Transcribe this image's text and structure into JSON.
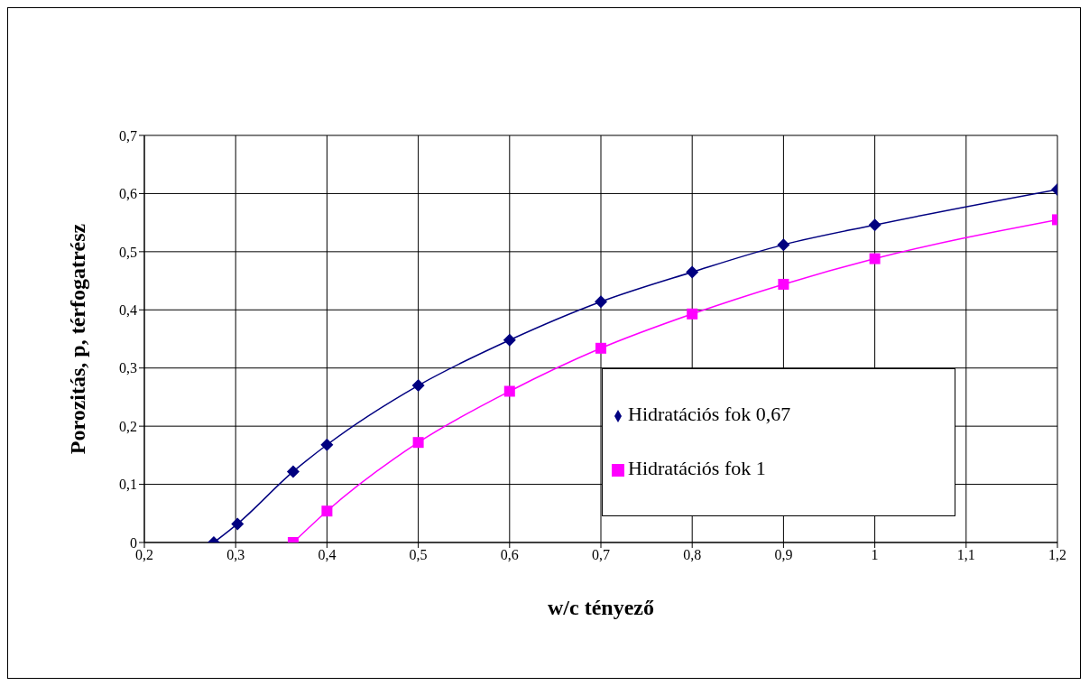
{
  "chart_data": {
    "type": "line",
    "xlabel": "w/c tényező",
    "ylabel": "Porozitás, p, térfogatrész",
    "series": [
      {
        "name": "Hidratációs fok 0,67",
        "color": "#000080",
        "marker": "diamond",
        "x": [
          0.276,
          0.302,
          0.363,
          0.4,
          0.5,
          0.6,
          0.7,
          0.8,
          0.9,
          1.0,
          1.2
        ],
        "values": [
          0,
          0.032,
          0.122,
          0.168,
          0.27,
          0.348,
          0.414,
          0.465,
          0.512,
          0.546,
          0.607
        ]
      },
      {
        "name": "Hidratációs fok 1",
        "color": "#ff00ff",
        "marker": "square",
        "x": [
          0.363,
          0.4,
          0.5,
          0.6,
          0.7,
          0.8,
          0.9,
          1.0,
          1.2
        ],
        "values": [
          0,
          0.054,
          0.172,
          0.26,
          0.334,
          0.393,
          0.444,
          0.488,
          0.555
        ]
      }
    ],
    "xlim": [
      0.2,
      1.2
    ],
    "xticks": [
      {
        "value": 0.2,
        "label": "0,2"
      },
      {
        "value": 0.3,
        "label": "0,3"
      },
      {
        "value": 0.4,
        "label": "0,4"
      },
      {
        "value": 0.5,
        "label": "0,5"
      },
      {
        "value": 0.6,
        "label": "0,6"
      },
      {
        "value": 0.7,
        "label": "0,7"
      },
      {
        "value": 0.8,
        "label": "0,8"
      },
      {
        "value": 0.9,
        "label": "0,9"
      },
      {
        "value": 1,
        "label": "1"
      },
      {
        "value": 1.1,
        "label": "1,1"
      },
      {
        "value": 1.2,
        "label": "1,2"
      }
    ],
    "ylim": [
      0,
      0.7
    ],
    "yticks": [
      0,
      {
        "value": 0.1,
        "label": "0,1"
      },
      {
        "value": 0.2,
        "label": "0,2"
      },
      {
        "value": 0.3,
        "label": "0,3"
      },
      {
        "value": 0.4,
        "label": "0,4"
      },
      {
        "value": 0.5,
        "label": "0,5"
      },
      {
        "value": 0.6,
        "label": "0,6"
      },
      {
        "value": 0.7,
        "label": "0,7"
      }
    ],
    "grid": true,
    "legend": "bottom right",
    "line_style": "solid"
  }
}
